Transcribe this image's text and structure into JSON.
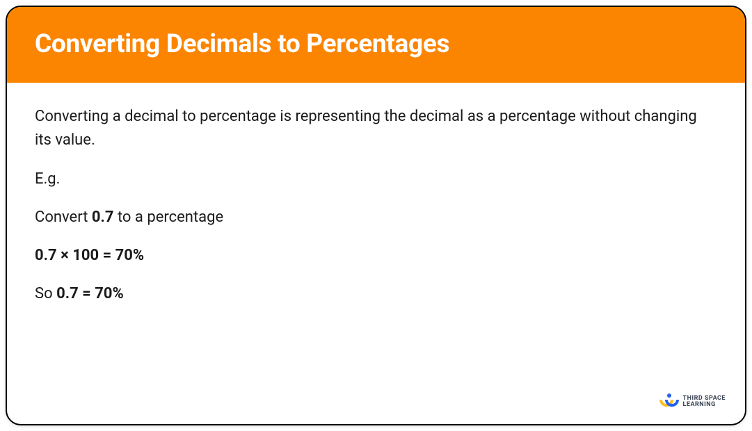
{
  "header": {
    "title": "Converting Decimals to Percentages",
    "background_color": "#fb8500",
    "text_color": "#ffffff"
  },
  "content": {
    "intro": "Converting a decimal to percentage is representing the decimal as a percentage without changing its value.",
    "eg_label": "E.g.",
    "convert_prefix": "Convert ",
    "convert_value": "0.7",
    "convert_suffix": " to a percentage",
    "calculation": "0.7 × 100 = 70%",
    "so_prefix": "So ",
    "so_result": "0.7 = 70%"
  },
  "logo": {
    "line1": "THIRD SPACE",
    "line2": "LEARNING",
    "dot_color": "#2563eb",
    "arc_yellow": "#fbbf24",
    "arc_blue": "#2563eb"
  },
  "styling": {
    "card_border_color": "#000000",
    "card_border_radius": 22,
    "card_background": "#ffffff",
    "body_text_color": "#1a1a1a",
    "title_fontsize": 37,
    "body_fontsize": 22
  }
}
